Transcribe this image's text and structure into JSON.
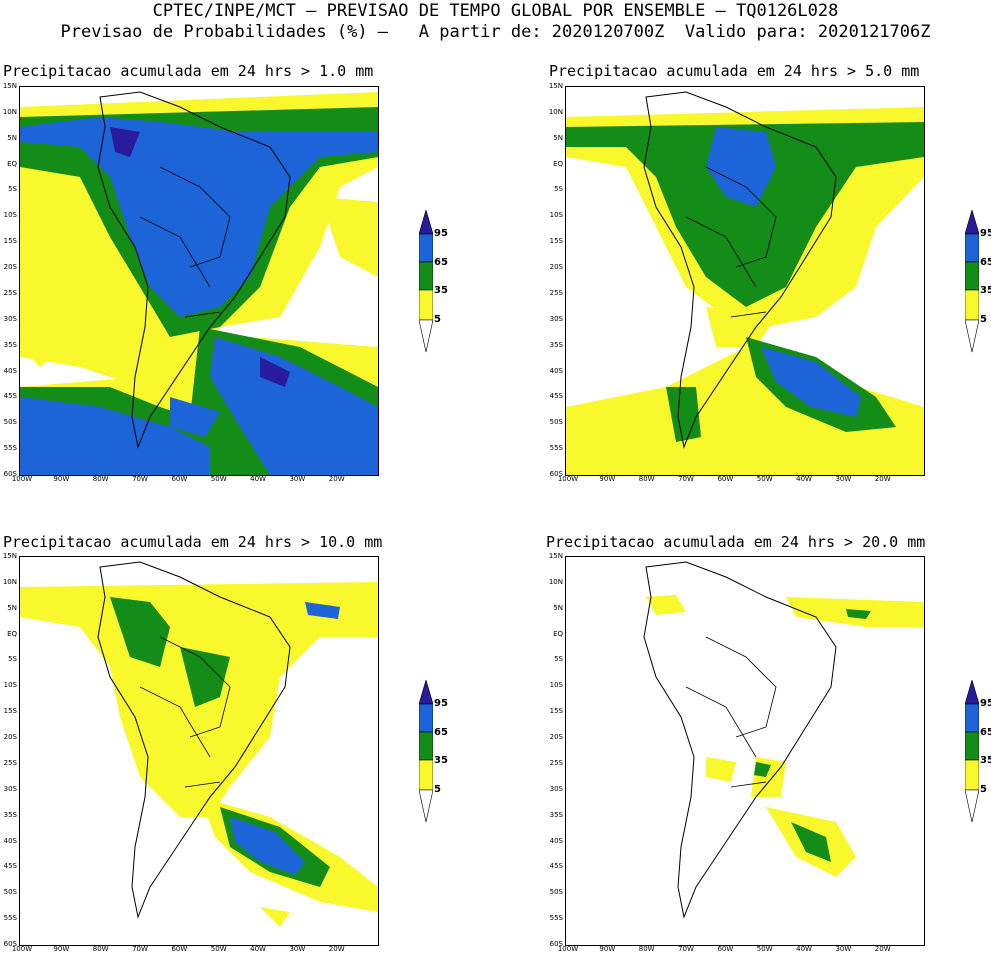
{
  "header": {
    "line1": "CPTEC/INPE/MCT – PREVISAO DE TEMPO GLOBAL POR ENSEMBLE – TQ0126L028",
    "line2": "Previsao de Probabilidades (%) –   A partir de: 2020120700Z  Valido para: 2020121706Z"
  },
  "panels": [
    {
      "title": "Precipitacao acumulada em 24 hrs > 1.0 mm"
    },
    {
      "title": "Precipitacao acumulada em 24 hrs > 5.0 mm"
    },
    {
      "title": "Precipitacao acumulada em 24 hrs > 10.0 mm"
    },
    {
      "title": "Precipitacao acumulada em 24 hrs > 20.0 mm"
    }
  ],
  "lat_labels": [
    "15N",
    "10N",
    "5N",
    "EQ",
    "5S",
    "10S",
    "15S",
    "20S",
    "25S",
    "30S",
    "35S",
    "40S",
    "45S",
    "50S",
    "55S",
    "60S"
  ],
  "lon_labels": [
    "100W",
    "90W",
    "80W",
    "70W",
    "60W",
    "50W",
    "40W",
    "30W",
    "20W"
  ],
  "colorbar": {
    "levels": [
      "95",
      "65",
      "35",
      "5"
    ],
    "colors": {
      "c95": "#281c9c",
      "c65": "#1c64d8",
      "c35": "#148c18",
      "c5": "#f8f82c"
    }
  }
}
